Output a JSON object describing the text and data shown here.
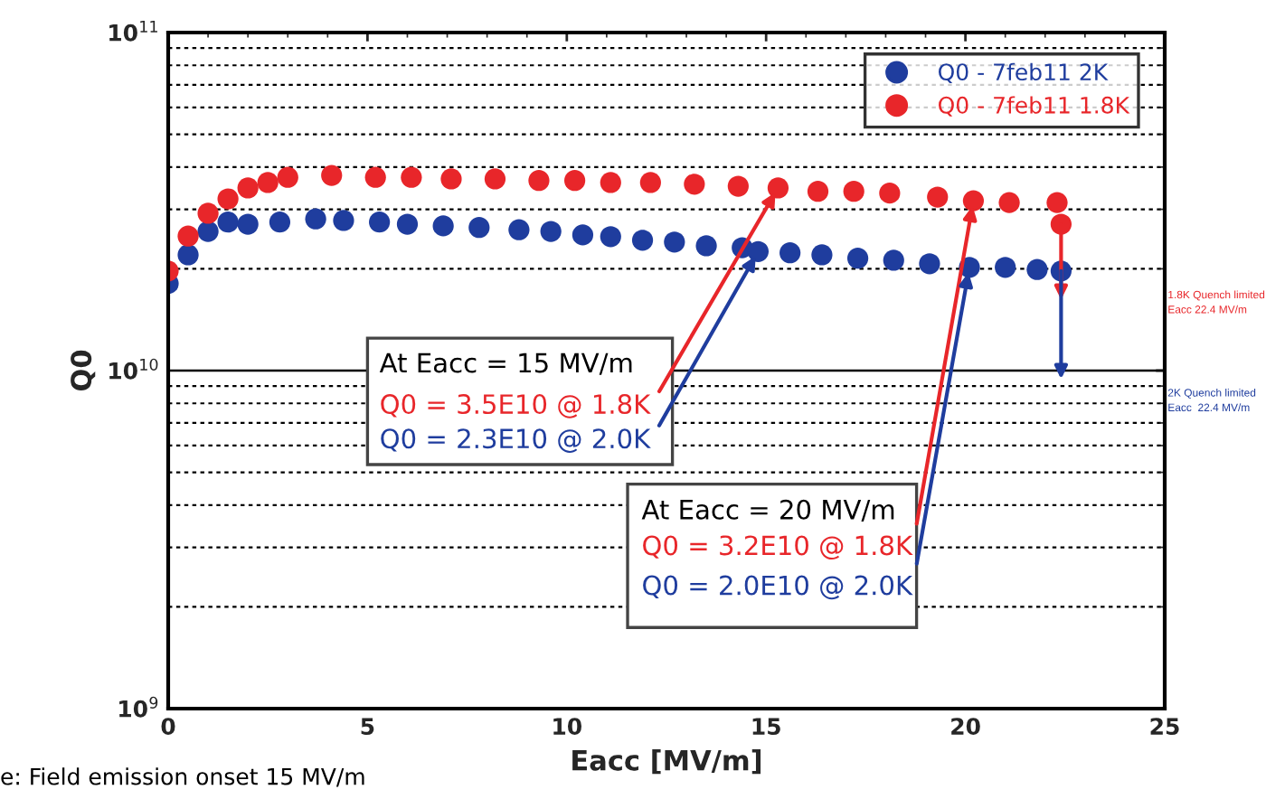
{
  "chart_data": {
    "type": "scatter",
    "xlabel": "Eacc [MV/m]",
    "ylabel": "Q0",
    "log": "y",
    "xlim": [
      0,
      25
    ],
    "xticks": [
      0,
      5,
      10,
      15,
      20,
      25
    ],
    "ylim": [
      1000000000.0,
      100000000000.0
    ],
    "yticks": [
      {
        "value": 1000000000.0,
        "label": "10$^{9}$"
      },
      {
        "value": 10000000000.0,
        "label": "10$^{10}$"
      },
      {
        "value": 100000000000.0,
        "label": "10$^{11}$"
      }
    ],
    "grid": true,
    "ref_lines": [
      {
        "axis": "y",
        "value": 10000000000.0,
        "color": "#000000"
      }
    ],
    "legend": "top right",
    "marker": "circle",
    "series": [
      {
        "name": "Q0 - 7feb11 2K",
        "color": "#1f3d9e",
        "x": [
          0,
          0.5,
          1,
          1.5,
          2.0,
          2.8,
          3.7,
          4.4,
          5.3,
          6.0,
          6.9,
          7.8,
          8.8,
          9.6,
          10.4,
          11.1,
          11.9,
          12.7,
          13.5,
          14.4,
          14.8,
          15.6,
          16.4,
          17.3,
          18.2,
          19.1,
          20.1,
          21.0,
          21.8,
          22.4
        ],
        "values": [
          18100000000.0,
          22000000000.0,
          25800000000.0,
          27500000000.0,
          27100000000.0,
          27500000000.0,
          28100000000.0,
          27800000000.0,
          27500000000.0,
          27100000000.0,
          26800000000.0,
          26500000000.0,
          26100000000.0,
          25800000000.0,
          25200000000.0,
          24900000000.0,
          24300000000.0,
          24000000000.0,
          23400000000.0,
          23100000000.0,
          22500000000.0,
          22300000000.0,
          22000000000.0,
          21500000000.0,
          21200000000.0,
          20700000000.0,
          20200000000.0,
          20200000000.0,
          19900000000.0,
          19700000000.0
        ]
      },
      {
        "name": "Q0 - 7feb11 1.8K",
        "color": "#e8262a",
        "x": [
          0,
          0.5,
          1,
          1.5,
          2.0,
          2.5,
          3.0,
          4.1,
          5.2,
          6.1,
          7.1,
          8.2,
          9.3,
          10.2,
          11.1,
          12.1,
          13.2,
          14.3,
          15.3,
          16.3,
          17.2,
          18.1,
          19.3,
          20.2,
          21.1,
          22.3,
          22.4
        ],
        "values": [
          19700000000.0,
          25000000000.0,
          29200000000.0,
          32200000000.0,
          34700000000.0,
          36000000000.0,
          37300000000.0,
          37800000000.0,
          37300000000.0,
          37300000000.0,
          36900000000.0,
          36900000000.0,
          36500000000.0,
          36500000000.0,
          36000000000.0,
          36000000000.0,
          35600000000.0,
          35100000000.0,
          34700000000.0,
          33900000000.0,
          33900000000.0,
          33500000000.0,
          32600000000.0,
          31800000000.0,
          31400000000.0,
          31400000000.0,
          27100000000.0
        ]
      }
    ],
    "annotations": [
      "At Eacc = 15 MV/m",
      {
        "text": "Q0 = 3.5E10 @ 1.8K",
        "x": 15.3,
        "y": 34700000000.0
      },
      {
        "text": "Q0 = 2.3E10 @ 2.0K",
        "x": 14.8,
        "y": 22500000000.0
      },
      "At Eacc = 20 MV/m",
      {
        "text": "Q0 = 3.2E10 @ 1.8K",
        "x": 20.2,
        "y": 31800000000.0
      },
      {
        "text": "Q0 = 2.0E10 @ 2.0K",
        "x": 20.1,
        "y": 20200000000.0
      },
      "1.8K Quench limited\nEacc 22.4 MV/m",
      "2K Quench limited\nEacc  22.4 MV/m",
      "e: Field emission onset 15 MV/m"
    ]
  }
}
